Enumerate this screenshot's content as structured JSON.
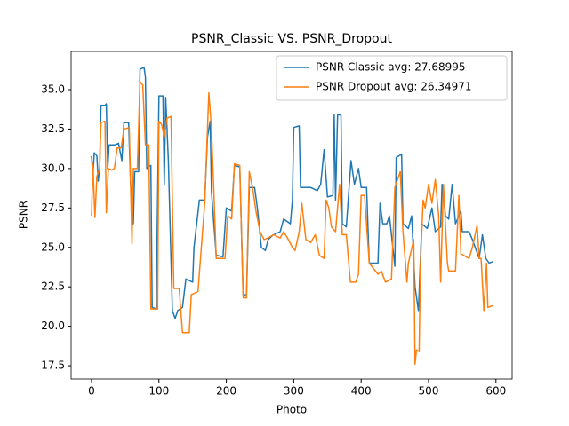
{
  "chart_data": {
    "type": "line",
    "title": "PSNR_Classic VS. PSNR_Dropout",
    "x_label": "Photo",
    "y_label": "PSNR",
    "xlim": [
      -30.3,
      624
    ],
    "ylim": [
      16.66,
      37.42
    ],
    "xticks": [
      0,
      100,
      200,
      300,
      400,
      500,
      600
    ],
    "yticks": [
      17.5,
      {
        "value": 20,
        "label": "20.0"
      },
      22.5,
      {
        "value": 25,
        "label": "25.0"
      },
      27.5,
      {
        "value": 30,
        "label": "30.0"
      },
      32.5,
      {
        "value": 35,
        "label": "35.0"
      }
    ],
    "legend": "upper right",
    "grid": false,
    "series": [
      {
        "name": "PSNR Classic avg: 27.68995",
        "color": "#1f77b4",
        "x": [
          0,
          2,
          4,
          8,
          10,
          12,
          14,
          20,
          22,
          24,
          26,
          35,
          40,
          45,
          48,
          55,
          58,
          62,
          64,
          70,
          72,
          78,
          80,
          82,
          88,
          90,
          96,
          100,
          106,
          108,
          110,
          114,
          120,
          124,
          128,
          135,
          140,
          150,
          152,
          160,
          168,
          172,
          176,
          178,
          185,
          195,
          200,
          208,
          212,
          220,
          225,
          230,
          234,
          242,
          246,
          252,
          258,
          262,
          270,
          280,
          285,
          295,
          298,
          300,
          308,
          310,
          325,
          335,
          340,
          345,
          350,
          358,
          360,
          362,
          365,
          370,
          372,
          378,
          385,
          390,
          396,
          400,
          408,
          412,
          425,
          428,
          432,
          438,
          442,
          450,
          452,
          460,
          462,
          470,
          475,
          480,
          485,
          490,
          498,
          505,
          510,
          518,
          520,
          525,
          530,
          535,
          540,
          548,
          550,
          560,
          565,
          575,
          580,
          585,
          590,
          595
        ],
        "values": [
          30.8,
          29.5,
          31.0,
          30.8,
          29.2,
          30.0,
          34.0,
          34.0,
          34.1,
          30.0,
          31.5,
          31.5,
          31.6,
          30.5,
          32.9,
          32.9,
          29.0,
          26.5,
          29.8,
          29.8,
          36.3,
          36.4,
          35.8,
          30.0,
          30.2,
          21.2,
          21.1,
          34.6,
          34.6,
          29.0,
          34.5,
          30.5,
          21.0,
          20.5,
          21.0,
          21.2,
          23.0,
          22.8,
          25.0,
          28.0,
          28.0,
          32.0,
          33.0,
          28.5,
          24.5,
          24.4,
          27.5,
          27.3,
          30.2,
          30.1,
          22.0,
          22.0,
          28.8,
          28.8,
          27.5,
          25.0,
          24.8,
          25.5,
          25.8,
          26.0,
          26.8,
          26.5,
          28.0,
          32.6,
          32.7,
          28.8,
          28.8,
          28.6,
          29.0,
          31.2,
          28.2,
          28.3,
          33.4,
          28.0,
          33.4,
          33.4,
          26.5,
          26.3,
          30.5,
          29.0,
          30.0,
          28.8,
          28.8,
          24.0,
          24.0,
          27.8,
          26.5,
          26.5,
          27.0,
          23.8,
          30.7,
          30.9,
          26.5,
          26.2,
          27.0,
          22.5,
          21.0,
          26.5,
          26.2,
          27.5,
          26.0,
          26.3,
          29.0,
          27.0,
          26.8,
          29.0,
          26.5,
          27.3,
          26.0,
          26.0,
          25.5,
          24.3,
          25.8,
          24.3,
          24.0,
          24.1
        ]
      },
      {
        "name": "PSNR Dropout avg: 26.34971",
        "color": "#ff7f0e",
        "x": [
          0,
          2,
          5,
          8,
          12,
          14,
          20,
          22,
          25,
          30,
          34,
          38,
          44,
          48,
          56,
          60,
          62,
          68,
          72,
          76,
          80,
          85,
          88,
          98,
          100,
          104,
          108,
          112,
          118,
          122,
          130,
          135,
          145,
          148,
          158,
          162,
          168,
          174,
          178,
          182,
          185,
          198,
          202,
          208,
          212,
          220,
          225,
          230,
          234,
          240,
          244,
          250,
          256,
          262,
          270,
          280,
          285,
          292,
          298,
          302,
          308,
          312,
          318,
          325,
          332,
          338,
          345,
          348,
          352,
          356,
          362,
          368,
          372,
          378,
          384,
          392,
          396,
          400,
          405,
          412,
          425,
          430,
          436,
          445,
          450,
          458,
          462,
          468,
          470,
          478,
          480,
          482,
          486,
          488,
          492,
          495,
          500,
          505,
          510,
          515,
          518,
          522,
          528,
          530,
          540,
          545,
          548,
          552,
          560,
          565,
          572,
          575,
          578,
          582,
          586,
          588,
          595
        ],
        "values": [
          27.0,
          30.3,
          26.9,
          29.5,
          30.0,
          32.9,
          33.0,
          27.2,
          30.0,
          29.9,
          30.0,
          31.3,
          31.3,
          32.5,
          32.6,
          25.2,
          30.0,
          30.0,
          35.5,
          35.3,
          31.5,
          31.5,
          21.1,
          21.1,
          33.0,
          32.8,
          32.0,
          33.2,
          33.3,
          22.4,
          22.4,
          19.6,
          19.6,
          22.0,
          22.2,
          24.5,
          27.8,
          34.8,
          32.5,
          28.0,
          24.3,
          24.3,
          27.0,
          26.8,
          30.3,
          30.2,
          21.8,
          21.8,
          29.8,
          28.5,
          27.3,
          26.0,
          25.5,
          25.6,
          25.8,
          25.6,
          26.0,
          25.5,
          25.0,
          24.8,
          26.0,
          27.8,
          25.5,
          25.3,
          25.8,
          24.5,
          24.3,
          28.0,
          27.5,
          26.3,
          26.0,
          29.0,
          25.8,
          25.8,
          22.8,
          22.8,
          23.3,
          28.3,
          28.3,
          24.0,
          23.3,
          23.5,
          22.8,
          23.0,
          28.8,
          29.8,
          26.0,
          22.8,
          24.0,
          25.5,
          17.6,
          18.5,
          18.4,
          24.0,
          28.0,
          27.5,
          29.0,
          27.8,
          29.3,
          27.0,
          22.8,
          29.0,
          24.0,
          23.5,
          23.5,
          28.3,
          24.6,
          24.5,
          24.3,
          25.0,
          26.4,
          24.3,
          24.3,
          21.0,
          24.0,
          21.2,
          21.3
        ]
      }
    ]
  }
}
